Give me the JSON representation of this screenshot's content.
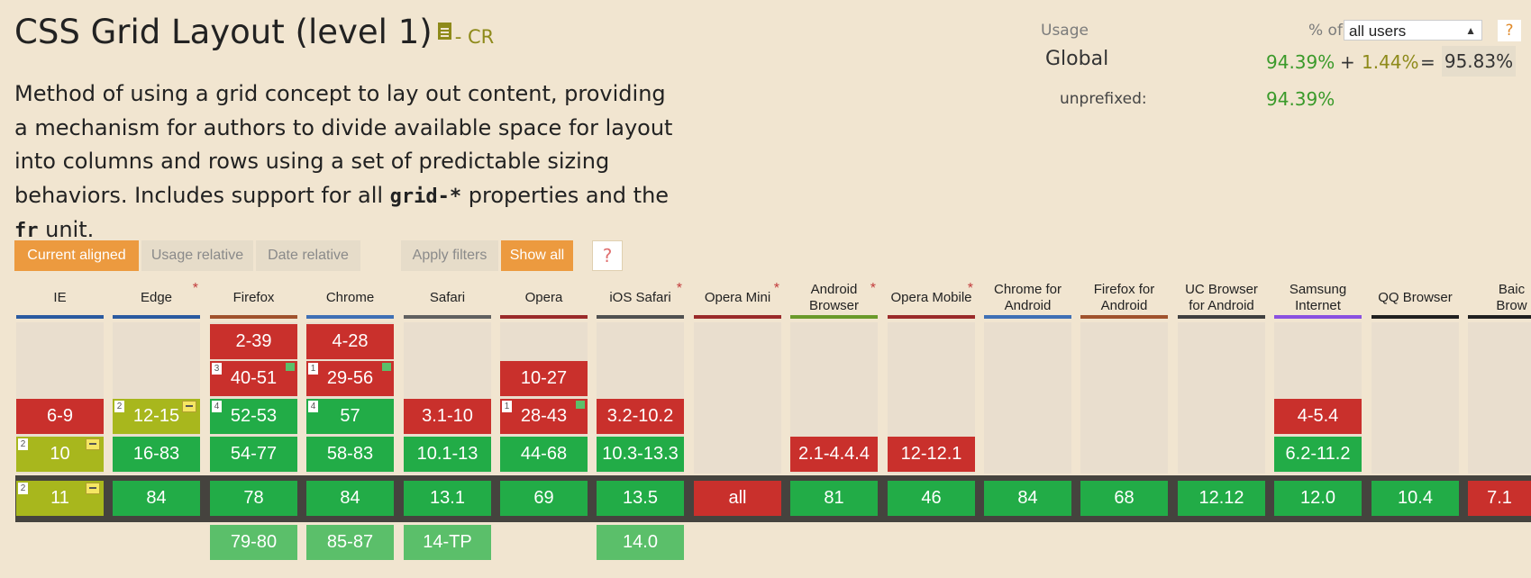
{
  "feature": {
    "title": "CSS Grid Layout (level 1)",
    "status": "- CR",
    "desc": {
      "p1": "Method of using a grid concept to lay out content, providing a mechanism for authors to divide available space for layout into columns and rows using a set of predictable sizing behaviors. Includes support for all ",
      "code1": "grid-*",
      "p2": " properties and the ",
      "code2": "fr",
      "p3": " unit."
    }
  },
  "usage": {
    "label": "Usage",
    "pct_of": "% of",
    "selected": "all users",
    "help": "?",
    "global_label": "Global",
    "global_full": "94.39%",
    "plus": "+",
    "global_partial": "1.44%",
    "equals": "=",
    "global_total": "95.83%",
    "unprefixed_label": "unprefixed:",
    "unprefixed_value": "94.39%"
  },
  "toolbar": {
    "current_aligned": "Current aligned",
    "usage_relative": "Usage relative",
    "date_relative": "Date relative",
    "apply_filters": "Apply filters",
    "show_all": "Show all",
    "help": "?"
  },
  "colors": {
    "full": "#22ac47",
    "none": "#c9302c",
    "partial": "#a8b71d",
    "future": "#5bbf6a",
    "accent": "#ec9a3f"
  },
  "browsers": [
    {
      "l1": "IE",
      "l2": "",
      "star": false,
      "color": "#2a5aa0",
      "cells": [
        {
          "r": 2,
          "v": "6-9",
          "c": "red"
        },
        {
          "r": 3,
          "v": "10",
          "c": "olive",
          "n": "2",
          "minus": true
        },
        {
          "r": 4,
          "v": "11",
          "c": "olive",
          "n": "2",
          "minus": true
        }
      ]
    },
    {
      "l1": "Edge",
      "l2": "",
      "star": true,
      "color": "#2a5aa0",
      "cells": [
        {
          "r": 2,
          "v": "12-15",
          "c": "olive",
          "n": "2",
          "minus": true
        },
        {
          "r": 3,
          "v": "16-83",
          "c": "green"
        },
        {
          "r": 4,
          "v": "84",
          "c": "green"
        }
      ]
    },
    {
      "l1": "Firefox",
      "l2": "",
      "star": false,
      "color": "#a0522d",
      "cells": [
        {
          "r": 0,
          "v": "2-39",
          "c": "red"
        },
        {
          "r": 1,
          "v": "40-51",
          "c": "red",
          "n": "3",
          "flag": true
        },
        {
          "r": 2,
          "v": "52-53",
          "c": "green",
          "n": "4"
        },
        {
          "r": 3,
          "v": "54-77",
          "c": "green"
        },
        {
          "r": 4,
          "v": "78",
          "c": "green"
        },
        {
          "r": 5,
          "v": "79-80",
          "c": "lgreen"
        }
      ]
    },
    {
      "l1": "Chrome",
      "l2": "",
      "star": false,
      "color": "#3f70b5",
      "cells": [
        {
          "r": 0,
          "v": "4-28",
          "c": "red"
        },
        {
          "r": 1,
          "v": "29-56",
          "c": "red",
          "n": "1",
          "flag": true
        },
        {
          "r": 2,
          "v": "57",
          "c": "green",
          "n": "4"
        },
        {
          "r": 3,
          "v": "58-83",
          "c": "green"
        },
        {
          "r": 4,
          "v": "84",
          "c": "green"
        },
        {
          "r": 5,
          "v": "85-87",
          "c": "lgreen"
        }
      ]
    },
    {
      "l1": "Safari",
      "l2": "",
      "star": false,
      "color": "#606060",
      "cells": [
        {
          "r": 2,
          "v": "3.1-10",
          "c": "red"
        },
        {
          "r": 3,
          "v": "10.1-13",
          "c": "green"
        },
        {
          "r": 4,
          "v": "13.1",
          "c": "green"
        },
        {
          "r": 5,
          "v": "14-TP",
          "c": "lgreen"
        }
      ]
    },
    {
      "l1": "Opera",
      "l2": "",
      "star": false,
      "color": "#9a2a2a",
      "cells": [
        {
          "r": 1,
          "v": "10-27",
          "c": "red"
        },
        {
          "r": 2,
          "v": "28-43",
          "c": "red",
          "n": "1",
          "flag": true
        },
        {
          "r": 3,
          "v": "44-68",
          "c": "green"
        },
        {
          "r": 4,
          "v": "69",
          "c": "green"
        }
      ]
    },
    {
      "l1": "iOS Safari",
      "l2": "",
      "star": true,
      "color": "#505050",
      "cells": [
        {
          "r": 2,
          "v": "3.2-10.2",
          "c": "red"
        },
        {
          "r": 3,
          "v": "10.3-13.3",
          "c": "green"
        },
        {
          "r": 4,
          "v": "13.5",
          "c": "green"
        },
        {
          "r": 5,
          "v": "14.0",
          "c": "lgreen"
        }
      ]
    },
    {
      "l1": "Opera Mini",
      "l2": "",
      "star": true,
      "color": "#9a2a2a",
      "cells": [
        {
          "r": 4,
          "v": "all",
          "c": "red"
        }
      ]
    },
    {
      "l1": "Android",
      "l2": "Browser",
      "star": true,
      "color": "#6a9a2a",
      "cells": [
        {
          "r": 3,
          "v": "2.1-4.4.4",
          "c": "red"
        },
        {
          "r": 4,
          "v": "81",
          "c": "green"
        }
      ]
    },
    {
      "l1": "Opera Mobile",
      "l2": "",
      "star": true,
      "color": "#9a2a2a",
      "cells": [
        {
          "r": 3,
          "v": "12-12.1",
          "c": "red"
        },
        {
          "r": 4,
          "v": "46",
          "c": "green"
        }
      ]
    },
    {
      "l1": "Chrome for",
      "l2": "Android",
      "star": false,
      "color": "#3f70b5",
      "cells": [
        {
          "r": 4,
          "v": "84",
          "c": "green"
        }
      ]
    },
    {
      "l1": "Firefox for",
      "l2": "Android",
      "star": false,
      "color": "#a0522d",
      "cells": [
        {
          "r": 4,
          "v": "68",
          "c": "green"
        }
      ]
    },
    {
      "l1": "UC Browser",
      "l2": "for Android",
      "star": false,
      "color": "#404040",
      "cells": [
        {
          "r": 4,
          "v": "12.12",
          "c": "green"
        }
      ]
    },
    {
      "l1": "Samsung",
      "l2": "Internet",
      "star": false,
      "color": "#8a50e0",
      "cells": [
        {
          "r": 2,
          "v": "4-5.4",
          "c": "red"
        },
        {
          "r": 3,
          "v": "6.2-11.2",
          "c": "green"
        },
        {
          "r": 4,
          "v": "12.0",
          "c": "green"
        }
      ]
    },
    {
      "l1": "QQ Browser",
      "l2": "",
      "star": false,
      "color": "#202020",
      "cells": [
        {
          "r": 4,
          "v": "10.4",
          "c": "green"
        }
      ]
    },
    {
      "l1": "Baic",
      "l2": "Brow",
      "star": false,
      "color": "#202020",
      "cells": [
        {
          "r": 4,
          "v": "7.1",
          "c": "red"
        }
      ]
    }
  ]
}
